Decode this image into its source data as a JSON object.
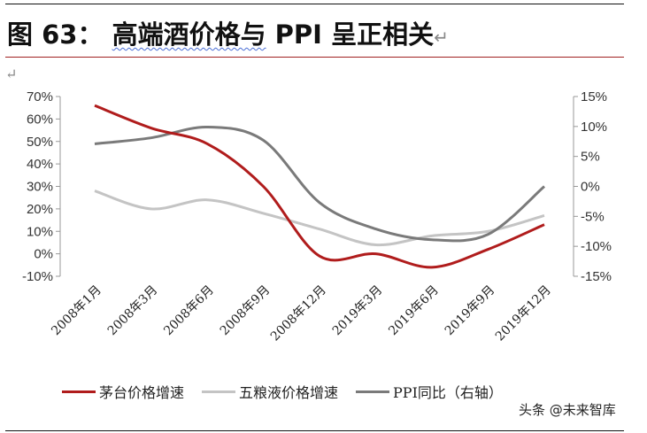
{
  "title_prefix": "图 63：",
  "title_main": "高端酒价格与",
  "title_tail": " PPI 呈正相关",
  "return_mark": "↵",
  "watermark": "头条 @未来智库",
  "chart_data": {
    "type": "line",
    "categories": [
      "2008年1月",
      "2008年3月",
      "2008年6月",
      "2008年9月",
      "2008年12月",
      "2019年3月",
      "2019年6月",
      "2019年9月",
      "2019年12月"
    ],
    "left_axis": {
      "ylim": [
        -10,
        70
      ],
      "ticks": [
        "-10%",
        "0%",
        "10%",
        "20%",
        "30%",
        "40%",
        "50%",
        "60%",
        "70%"
      ]
    },
    "right_axis": {
      "ylim": [
        -15,
        15
      ],
      "ticks": [
        "-15%",
        "-10%",
        "-5%",
        "0%",
        "5%",
        "10%",
        "15%"
      ]
    },
    "series": [
      {
        "name": "茅台价格增速",
        "axis": "left",
        "color": "#b01c1c",
        "values": [
          66,
          56,
          49,
          30,
          -1,
          0,
          -6,
          2,
          13
        ]
      },
      {
        "name": "五粮液价格增速",
        "axis": "left",
        "color": "#c4c4c4",
        "values": [
          28,
          20,
          24,
          18,
          11,
          4,
          8,
          10,
          17
        ]
      },
      {
        "name": "PPI同比（右轴）",
        "axis": "right",
        "color": "#7a7a7a",
        "values": [
          7.1,
          8.1,
          9.9,
          7.7,
          -2.7,
          -7.1,
          -8.9,
          -8,
          0
        ]
      }
    ],
    "grid": false,
    "legend_placement": "bottom"
  }
}
